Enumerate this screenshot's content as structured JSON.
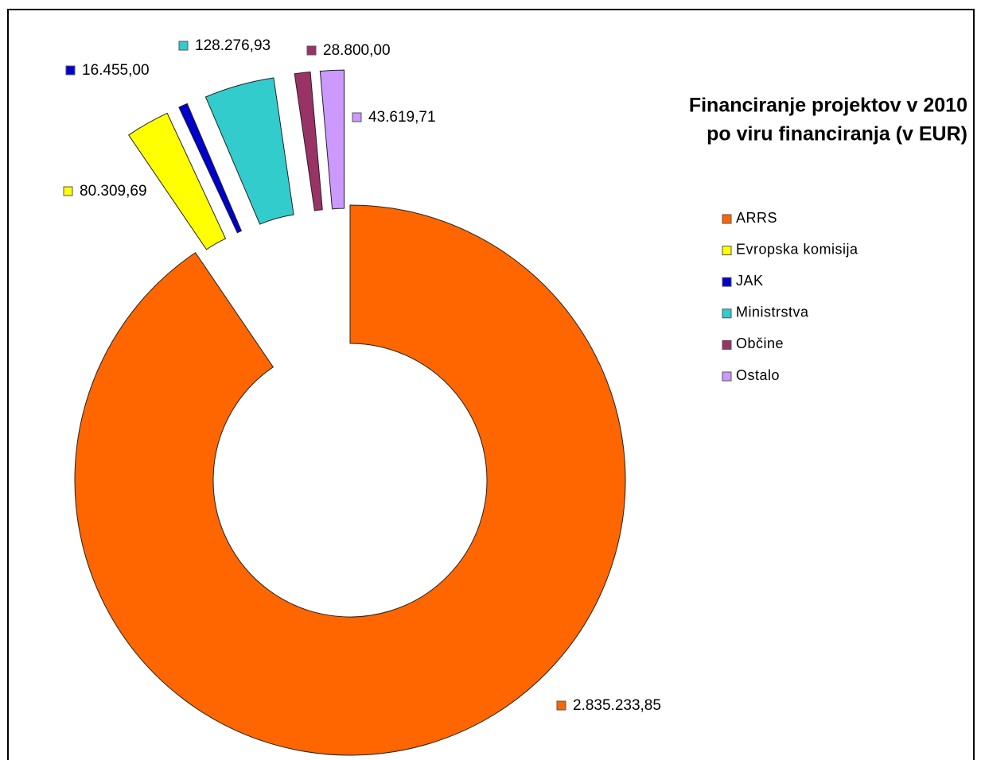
{
  "chart_data": {
    "type": "donut",
    "title": [
      "Financiranje projektov v 2010",
      "po viru financiranja (v EUR)"
    ],
    "categories": [
      "ARRS",
      "Evropska komisija",
      "JAK",
      "Ministrstva",
      "Občine",
      "Ostalo"
    ],
    "values": [
      2835233.85,
      80309.69,
      16455.0,
      128276.93,
      28800.0,
      43619.71
    ],
    "value_labels": [
      "2.835.233,85",
      "80.309,69",
      "16.455,00",
      "128.276,93",
      "28.800,00",
      "43.619,71"
    ],
    "colors": [
      "#ff6600",
      "#ffff00",
      "#0000cc",
      "#33cccc",
      "#993366",
      "#cc99ff"
    ],
    "exploded": [
      false,
      true,
      true,
      true,
      true,
      true
    ],
    "legend": "right"
  }
}
